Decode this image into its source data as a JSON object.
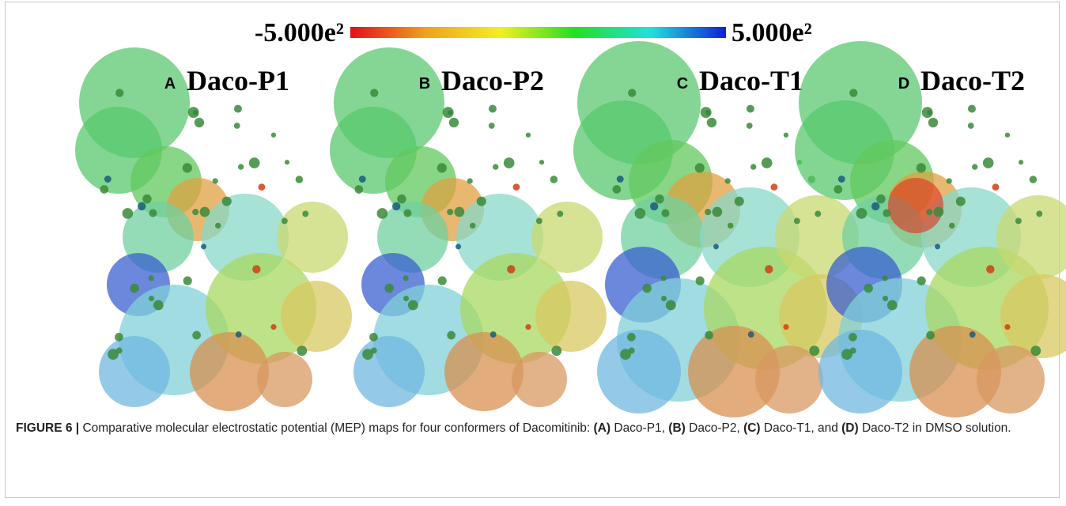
{
  "colorbar": {
    "min_label": "-5.000e²",
    "max_label": "5.000e²",
    "colors": [
      "#e0101a",
      "#f0a020",
      "#f2f020",
      "#20e020",
      "#20e0e0",
      "#1020d0"
    ]
  },
  "panels": [
    {
      "letter": "A",
      "name": "Daco-P1"
    },
    {
      "letter": "B",
      "name": "Daco-P2"
    },
    {
      "letter": "C",
      "name": "Daco-T1"
    },
    {
      "letter": "D",
      "name": "Daco-T2"
    }
  ],
  "caption": [
    {
      "text": "FIGURE 6 |",
      "bold": true
    },
    {
      "text": " Comparative molecular electrostatic potential (MEP) maps for four conformers of Dacomitinib: ",
      "bold": false
    },
    {
      "text": "(A)",
      "bold": true
    },
    {
      "text": " Daco-P1, ",
      "bold": false
    },
    {
      "text": "(B)",
      "bold": true
    },
    {
      "text": " Daco-P2, ",
      "bold": false
    },
    {
      "text": "(C)",
      "bold": true
    },
    {
      "text": " Daco-T1, and ",
      "bold": false
    },
    {
      "text": "(D)",
      "bold": true
    },
    {
      "text": " Daco-T2 in DMSO solution.",
      "bold": false
    }
  ]
}
